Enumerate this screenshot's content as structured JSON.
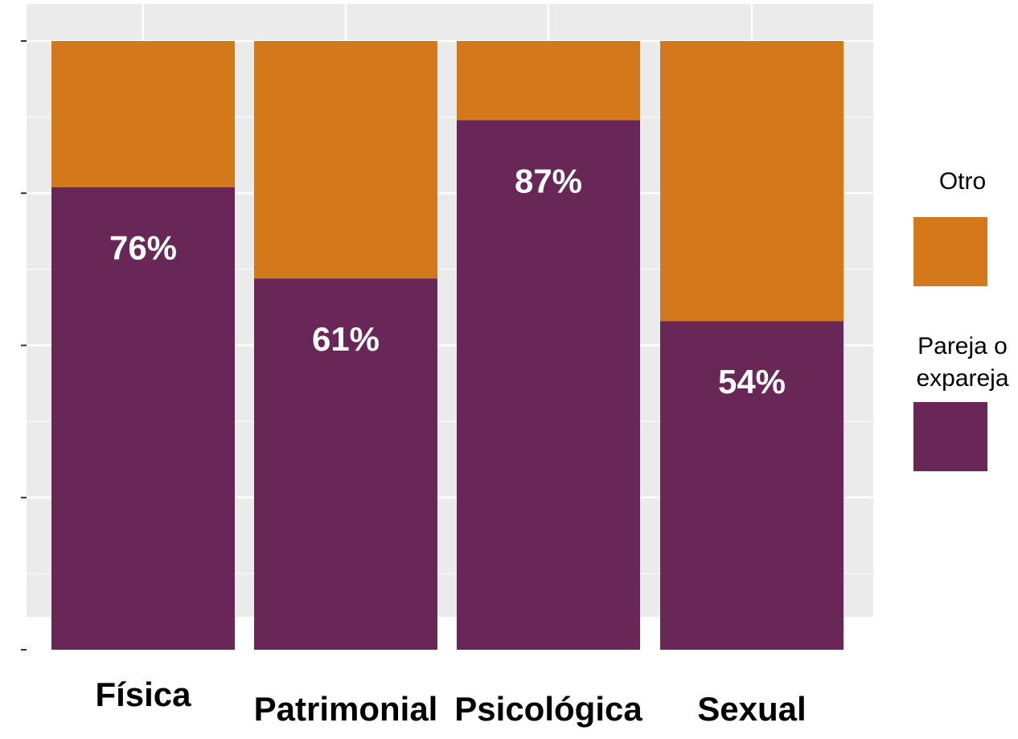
{
  "chart_data": {
    "type": "bar",
    "stacked": true,
    "normalized": true,
    "categories": [
      "Física",
      "Patrimonial",
      "Psicológica",
      "Sexual"
    ],
    "series": [
      {
        "name": "Pareja o expareja",
        "legend_lines": [
          "Pareja o",
          "expareja"
        ],
        "values": [
          76,
          61,
          87,
          54
        ],
        "labels": [
          "76%",
          "61%",
          "87%",
          "54%"
        ],
        "color": "#682757"
      },
      {
        "name": "Otro",
        "legend_lines": [
          "Otro"
        ],
        "values": [
          24,
          39,
          13,
          46
        ],
        "color": "#d4781c"
      }
    ],
    "ylim": [
      0,
      100
    ],
    "y_ticks": [
      0,
      25,
      50,
      75,
      100
    ],
    "y_tick_labels_visible": false,
    "title": "",
    "xlabel": "",
    "ylabel": "",
    "grid": true,
    "panel_background": "#ebebeb",
    "grid_color": "#ffffff",
    "legend_position": "right"
  }
}
